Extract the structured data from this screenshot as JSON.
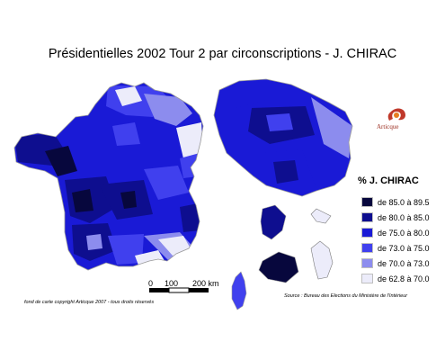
{
  "title": "Présidentielles 2002 Tour 2 par circonscriptions - J. CHIRAC",
  "legend": {
    "title": "% J. CHIRAC",
    "items": [
      {
        "label": "de 85.0 à 89.5",
        "color": "#07073d"
      },
      {
        "label": "de 80.0 à 85.0",
        "color": "#0e0e8f"
      },
      {
        "label": "de 75.0 à 80.0",
        "color": "#1a1ad6"
      },
      {
        "label": "de 73.0 à 75.0",
        "color": "#4040ee"
      },
      {
        "label": "de 70.0 à 73.0",
        "color": "#8c8cee"
      },
      {
        "label": "de 62.8 à 70.0",
        "color": "#ececfa"
      }
    ]
  },
  "scale": {
    "labels": [
      "0",
      "100",
      "200 km"
    ]
  },
  "logo": {
    "text": "Articque"
  },
  "credit": "fond de carte copyright Articque 2007 - tous droits réservés",
  "source": "Source : Bureau des Elections du Ministère de l'Intérieur"
}
